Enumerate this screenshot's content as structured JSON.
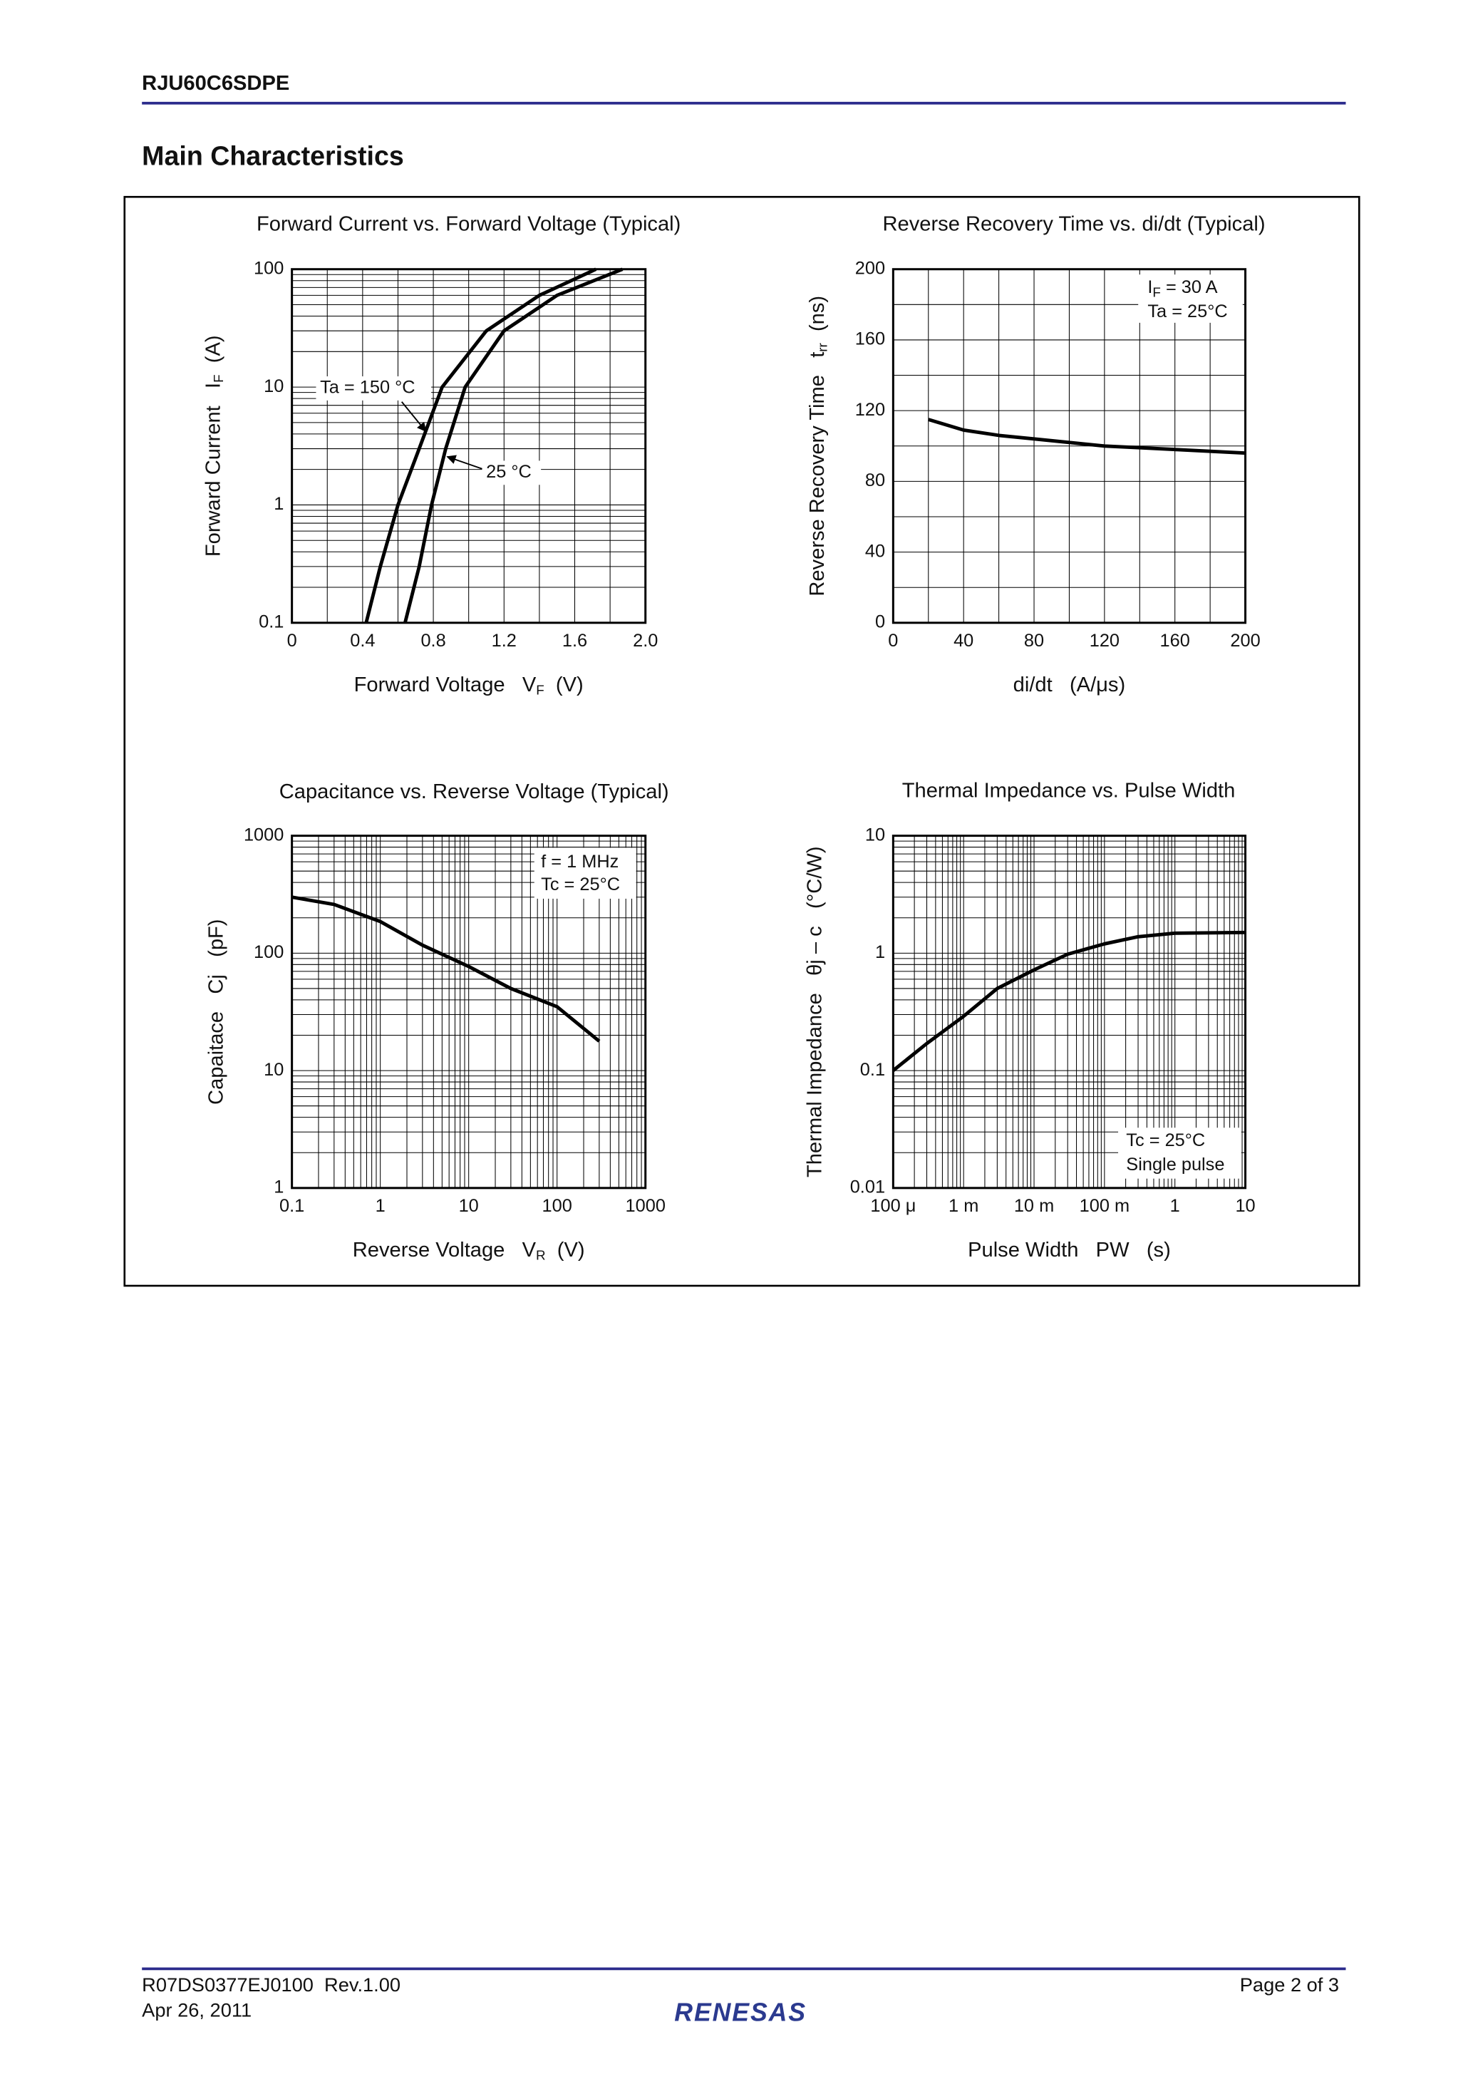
{
  "header": {
    "part_number": "RJU60C6SDPE"
  },
  "section_title": "Main Characteristics",
  "chart_data": [
    {
      "type": "line",
      "title": "Forward Current vs. Forward Voltage (Typical)",
      "xlabel": {
        "text": "Forward Voltage   V",
        "sub": "F",
        "after": "  (V)"
      },
      "ylabel": {
        "text": "Forward Current   I",
        "sub": "F",
        "after": "  (A)"
      },
      "xscale": "linear",
      "yscale": "log",
      "grid": true,
      "xlim": [
        0,
        2
      ],
      "xticks": [
        0,
        0.4,
        0.8,
        1.2,
        1.6,
        {
          "value": 2,
          "label": "2.0"
        }
      ],
      "ylim": [
        0.1,
        100
      ],
      "yticks": [
        0.1,
        1,
        10,
        100
      ],
      "series": [
        {
          "name": "Ta = 150 °C",
          "color": "#000000",
          "x": [
            0.42,
            0.5,
            0.6,
            0.72,
            0.85,
            1.1,
            1.4,
            1.72
          ],
          "values": [
            0.1,
            0.3,
            1,
            3,
            10,
            30,
            60,
            100
          ]
        },
        {
          "name": "25 °C",
          "color": "#000000",
          "x": [
            0.64,
            0.72,
            0.79,
            0.87,
            0.98,
            1.2,
            1.5,
            1.87
          ],
          "values": [
            0.1,
            0.3,
            1,
            3,
            10,
            30,
            60,
            100
          ]
        }
      ]
    },
    {
      "type": "line",
      "title": "Reverse Recovery Time vs. di/dt (Typical)",
      "xlabel": {
        "text": "di/dt   (A/μs)"
      },
      "ylabel": {
        "text": "Reverse Recovery Time   t",
        "sub": "rr",
        "after": "  (ns)"
      },
      "xscale": "linear",
      "yscale": "linear",
      "grid": true,
      "xlim": [
        0,
        200
      ],
      "xticks": [
        0,
        40,
        80,
        120,
        160,
        200
      ],
      "ylim": [
        0,
        200
      ],
      "yticks": [
        0,
        40,
        80,
        120,
        160,
        200
      ],
      "annotations": [
        {
          "text": "I",
          "sub": "F",
          "after": " = 30 A"
        },
        {
          "text": "Ta = 25°C"
        }
      ],
      "series": [
        {
          "color": "#000000",
          "x": [
            20,
            40,
            60,
            80,
            100,
            120,
            140,
            160,
            180,
            200
          ],
          "values": [
            115,
            109,
            106,
            104,
            102,
            100,
            99,
            98,
            97,
            96
          ]
        }
      ]
    },
    {
      "type": "line",
      "title": "Capacitance vs. Reverse Voltage (Typical)",
      "xlabel": {
        "text": "Reverse Voltage   V",
        "sub": "R",
        "after": "  (V)"
      },
      "ylabel": {
        "text": "Capaitace   Cj   (pF)"
      },
      "xscale": "log",
      "yscale": "log",
      "grid": true,
      "xlim": [
        0.1,
        1000
      ],
      "xticks": [
        0.1,
        1,
        10,
        100,
        1000
      ],
      "ylim": [
        1,
        1000
      ],
      "yticks": [
        1,
        10,
        100,
        1000
      ],
      "annotations": [
        {
          "text": "f = 1 MHz"
        },
        {
          "text": "Tc = 25°C"
        }
      ],
      "series": [
        {
          "color": "#000000",
          "x": [
            0.1,
            0.3,
            1,
            3,
            10,
            30,
            100,
            300
          ],
          "values": [
            300,
            260,
            186,
            117,
            77,
            50,
            35,
            17.8
          ]
        }
      ]
    },
    {
      "type": "line",
      "title": "Thermal Impedance vs. Pulse Width",
      "xlabel": {
        "text": "Pulse Width   PW   (s)"
      },
      "ylabel": {
        "text": "Thermal Impedance   θj – c   (°C/W)"
      },
      "xscale": "log",
      "yscale": "log",
      "grid": true,
      "xlim": [
        0.0001,
        10
      ],
      "xticks": [
        {
          "value": 0.0001,
          "label": "100 μ"
        },
        {
          "value": 0.001,
          "label": "1 m"
        },
        {
          "value": 0.01,
          "label": "10 m"
        },
        {
          "value": 0.1,
          "label": "100 m"
        },
        1,
        10
      ],
      "ylim": [
        0.01,
        10
      ],
      "yticks": [
        0.01,
        0.1,
        1,
        10
      ],
      "annotations": [
        {
          "text": "Tc = 25°C"
        },
        {
          "text": "Single pulse"
        }
      ],
      "series": [
        {
          "color": "#000000",
          "x": [
            0.0001,
            0.0003,
            0.001,
            0.003,
            0.01,
            0.03,
            0.1,
            0.3,
            1,
            10
          ],
          "values": [
            0.1,
            0.17,
            0.29,
            0.5,
            0.72,
            0.98,
            1.2,
            1.38,
            1.48,
            1.5
          ]
        }
      ]
    }
  ],
  "footer": {
    "doc_number": "R07DS0377EJ0100  Rev.1.00",
    "date": "Apr 26, 2011",
    "page": "Page 2 of 3",
    "logo": "RENESAS"
  }
}
